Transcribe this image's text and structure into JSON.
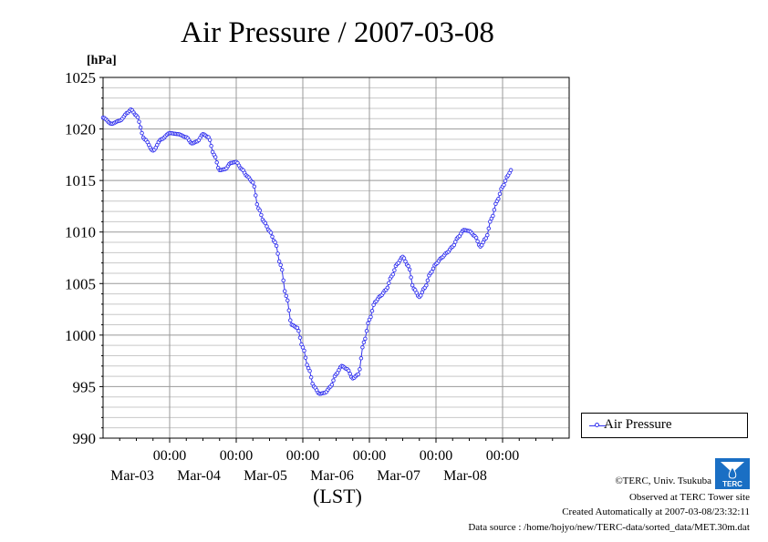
{
  "chart_data": {
    "type": "line",
    "title": "Air Pressure / 2007-03-08",
    "ylabel": "[hPa]",
    "xlabel": "(LST)",
    "ylim": [
      990,
      1025
    ],
    "yticks": [
      990,
      995,
      1000,
      1005,
      1010,
      1015,
      1020,
      1025
    ],
    "xlim": [
      "2007-03-02T00:00",
      "2007-03-08T24:00"
    ],
    "xticks": [
      {
        "time_label": "00:00",
        "date_label": "Mar-03",
        "x": "2007-03-03T00:00"
      },
      {
        "time_label": "00:00",
        "date_label": "Mar-04",
        "x": "2007-03-04T00:00"
      },
      {
        "time_label": "00:00",
        "date_label": "Mar-05",
        "x": "2007-03-05T00:00"
      },
      {
        "time_label": "00:00",
        "date_label": "Mar-06",
        "x": "2007-03-06T00:00"
      },
      {
        "time_label": "00:00",
        "date_label": "Mar-07",
        "x": "2007-03-07T00:00"
      },
      {
        "time_label": "00:00",
        "date_label": "Mar-08",
        "x": "2007-03-08T00:00"
      }
    ],
    "grid": true,
    "legend_position": "right",
    "series": [
      {
        "name": "Air Pressure",
        "color": "#3333ee",
        "points": [
          [
            "2007-03-02T00:00",
            1021.1
          ],
          [
            "2007-03-02T03:00",
            1020.5
          ],
          [
            "2007-03-02T06:00",
            1020.8
          ],
          [
            "2007-03-02T09:00",
            1021.6
          ],
          [
            "2007-03-02T10:00",
            1021.9
          ],
          [
            "2007-03-02T12:00",
            1021.3
          ],
          [
            "2007-03-02T15:00",
            1019.0
          ],
          [
            "2007-03-02T18:00",
            1017.9
          ],
          [
            "2007-03-02T21:00",
            1019.0
          ],
          [
            "2007-03-03T00:00",
            1019.6
          ],
          [
            "2007-03-03T03:00",
            1019.5
          ],
          [
            "2007-03-03T06:00",
            1019.2
          ],
          [
            "2007-03-03T08:00",
            1018.6
          ],
          [
            "2007-03-03T10:00",
            1018.8
          ],
          [
            "2007-03-03T12:00",
            1019.5
          ],
          [
            "2007-03-03T14:00",
            1019.2
          ],
          [
            "2007-03-03T16:00",
            1017.5
          ],
          [
            "2007-03-03T18:00",
            1016.0
          ],
          [
            "2007-03-03T20:00",
            1016.1
          ],
          [
            "2007-03-03T22:00",
            1016.7
          ],
          [
            "2007-03-04T00:00",
            1016.8
          ],
          [
            "2007-03-04T02:00",
            1016.1
          ],
          [
            "2007-03-04T04:00",
            1015.4
          ],
          [
            "2007-03-04T06:00",
            1014.8
          ],
          [
            "2007-03-04T08:00",
            1012.3
          ],
          [
            "2007-03-04T10:00",
            1011.0
          ],
          [
            "2007-03-04T12:00",
            1010.1
          ],
          [
            "2007-03-04T14:00",
            1009.0
          ],
          [
            "2007-03-04T16:00",
            1006.8
          ],
          [
            "2007-03-04T18:00",
            1003.8
          ],
          [
            "2007-03-04T20:00",
            1001.0
          ],
          [
            "2007-03-04T22:00",
            1000.7
          ],
          [
            "2007-03-05T00:00",
            998.8
          ],
          [
            "2007-03-05T02:00",
            996.8
          ],
          [
            "2007-03-05T04:00",
            995.0
          ],
          [
            "2007-03-05T06:00",
            994.3
          ],
          [
            "2007-03-05T08:00",
            994.4
          ],
          [
            "2007-03-05T10:00",
            995.0
          ],
          [
            "2007-03-05T12:00",
            996.2
          ],
          [
            "2007-03-05T14:00",
            997.0
          ],
          [
            "2007-03-05T16:00",
            996.7
          ],
          [
            "2007-03-05T18:00",
            995.8
          ],
          [
            "2007-03-05T20:00",
            996.2
          ],
          [
            "2007-03-05T22:00",
            999.3
          ],
          [
            "2007-03-06T00:00",
            1001.5
          ],
          [
            "2007-03-06T02:00",
            1003.2
          ],
          [
            "2007-03-06T04:00",
            1003.8
          ],
          [
            "2007-03-06T06:00",
            1004.4
          ],
          [
            "2007-03-06T08:00",
            1005.7
          ],
          [
            "2007-03-06T10:00",
            1006.9
          ],
          [
            "2007-03-06T12:00",
            1007.6
          ],
          [
            "2007-03-06T14:00",
            1006.7
          ],
          [
            "2007-03-06T16:00",
            1004.5
          ],
          [
            "2007-03-06T18:00",
            1003.7
          ],
          [
            "2007-03-06T20:00",
            1004.6
          ],
          [
            "2007-03-06T22:00",
            1006.0
          ],
          [
            "2007-03-07T00:00",
            1006.9
          ],
          [
            "2007-03-07T02:00",
            1007.5
          ],
          [
            "2007-03-07T04:00",
            1008.0
          ],
          [
            "2007-03-07T06:00",
            1008.6
          ],
          [
            "2007-03-07T08:00",
            1009.5
          ],
          [
            "2007-03-07T10:00",
            1010.2
          ],
          [
            "2007-03-07T12:00",
            1010.1
          ],
          [
            "2007-03-07T14:00",
            1009.6
          ],
          [
            "2007-03-07T16:00",
            1008.6
          ],
          [
            "2007-03-07T18:00",
            1009.4
          ],
          [
            "2007-03-07T20:00",
            1011.3
          ],
          [
            "2007-03-07T22:00",
            1013.0
          ],
          [
            "2007-03-08T00:00",
            1014.4
          ],
          [
            "2007-03-08T02:00",
            1015.5
          ],
          [
            "2007-03-08T03:00",
            1016.0
          ]
        ]
      }
    ]
  },
  "credits": {
    "copyright": "©TERC, Univ. Tsukuba",
    "observed": "Observed at TERC Tower site",
    "created": "Created Automatically at 2007-03-08/23:32:11",
    "source": "Data source : /home/hojyo/new/TERC-data/sorted_data/MET.30m.dat",
    "logo_text": "TERC"
  }
}
